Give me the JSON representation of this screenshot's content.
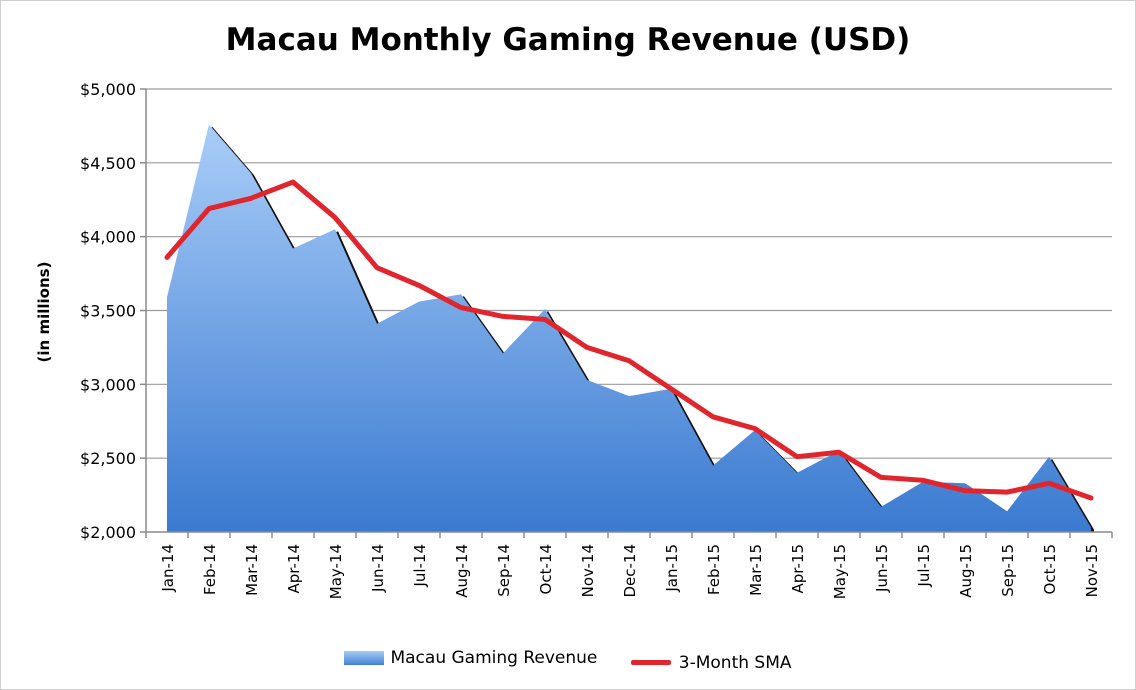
{
  "chart_data": {
    "type": "area",
    "title": "Macau Monthly Gaming Revenue (USD)",
    "xlabel": "",
    "ylabel": "(in millions)",
    "categories": [
      "Jan-14",
      "Feb-14",
      "Mar-14",
      "Apr-14",
      "May-14",
      "Jun-14",
      "Jul-14",
      "Aug-14",
      "Sep-14",
      "Oct-14",
      "Nov-14",
      "Dec-14",
      "Jan-15",
      "Feb-15",
      "Mar-15",
      "Apr-15",
      "May-15",
      "Jun-15",
      "Jul-15",
      "Aug-15",
      "Sep-15",
      "Oct-15",
      "Nov-15"
    ],
    "ylim": [
      2000,
      5000
    ],
    "yticks": [
      2000,
      2500,
      3000,
      3500,
      4000,
      4500,
      5000
    ],
    "ytick_labels": [
      "$2,000",
      "$2,500",
      "$3,000",
      "$3,500",
      "$4,000",
      "$4,500",
      "$5,000"
    ],
    "grid": true,
    "legend_position": "bottom",
    "series": [
      {
        "name": "Macau Gaming Revenue",
        "type": "area",
        "color": "#4a87d6",
        "values": [
          3590,
          4760,
          4430,
          3920,
          4050,
          3410,
          3560,
          3610,
          3210,
          3510,
          3030,
          2920,
          2970,
          2450,
          2690,
          2400,
          2550,
          2170,
          2340,
          2330,
          2140,
          2510,
          2030
        ]
      },
      {
        "name": "3-Month SMA",
        "type": "line",
        "color": "#e0252d",
        "values": [
          3860,
          4190,
          4260,
          4370,
          4130,
          3790,
          3670,
          3520,
          3460,
          3440,
          3250,
          3160,
          2970,
          2780,
          2700,
          2510,
          2540,
          2370,
          2350,
          2280,
          2270,
          2330,
          2230
        ]
      }
    ]
  }
}
